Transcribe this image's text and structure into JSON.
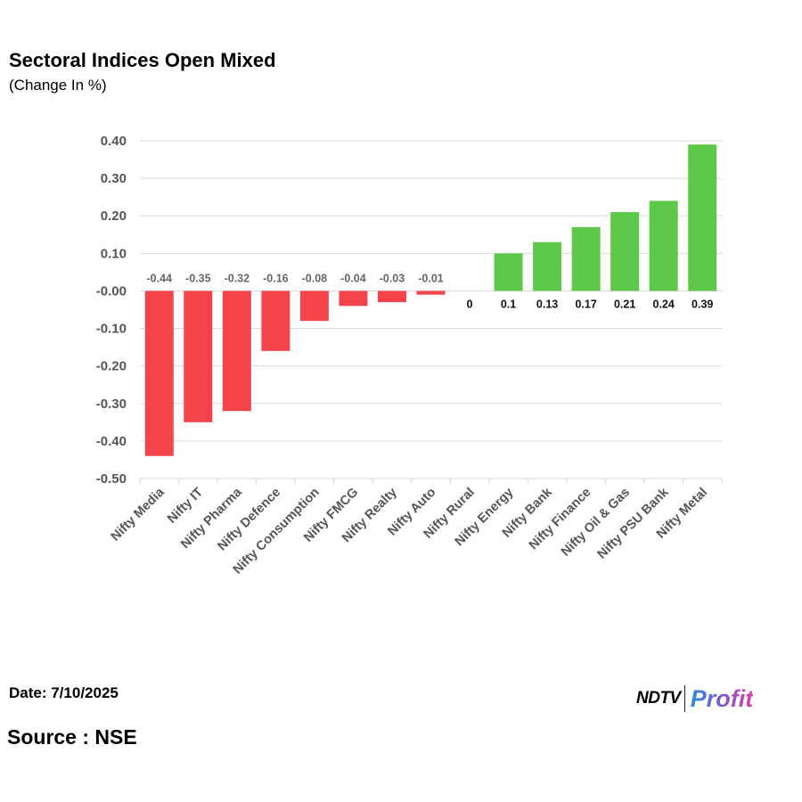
{
  "header": {
    "title": "Sectoral Indices Open Mixed",
    "subtitle": "(Change In %)"
  },
  "footer": {
    "date": "Date: 7/10/2025",
    "source": "Source : NSE",
    "brand_ndtv": "NDTV",
    "brand_profit": "Profit"
  },
  "colors": {
    "negative": "#f5434b",
    "positive": "#5ec84b",
    "grid": "#d9d9d9"
  },
  "chart_data": {
    "type": "bar",
    "title": "Sectoral Indices Open Mixed",
    "subtitle": "(Change In %)",
    "xlabel": "",
    "ylabel": "",
    "ylim": [
      -0.5,
      0.4
    ],
    "yticks": [
      0.4,
      0.3,
      0.2,
      0.1,
      0.0,
      -0.1,
      -0.2,
      -0.3,
      -0.4,
      -0.5
    ],
    "ytick_labels": [
      "0.40",
      "0.30",
      "0.20",
      "0.10",
      "-0.00",
      "-0.10",
      "-0.20",
      "-0.30",
      "-0.40",
      "-0.50"
    ],
    "grid": true,
    "categories": [
      "Nifty Media",
      "Nifty IT",
      "Nifty Pharma",
      "Nifty Defence",
      "Nifty Consumption",
      "Nifty FMCG",
      "Nifty Realty",
      "Nifty Auto",
      "Nifty Rural",
      "Nifty Energy",
      "Nifty Bank",
      "Nifty Finance",
      "Nifty Oil & Gas",
      "Nifty PSU Bank",
      "Nifty Metal"
    ],
    "values": [
      -0.44,
      -0.35,
      -0.32,
      -0.16,
      -0.08,
      -0.04,
      -0.03,
      -0.01,
      0,
      0.1,
      0.13,
      0.17,
      0.21,
      0.24,
      0.39
    ],
    "value_labels": [
      "-0.44",
      "-0.35",
      "-0.32",
      "-0.16",
      "-0.08",
      "-0.04",
      "-0.03",
      "-0.01",
      "0",
      "0.1",
      "0.13",
      "0.17",
      "0.21",
      "0.24",
      "0.39"
    ]
  }
}
